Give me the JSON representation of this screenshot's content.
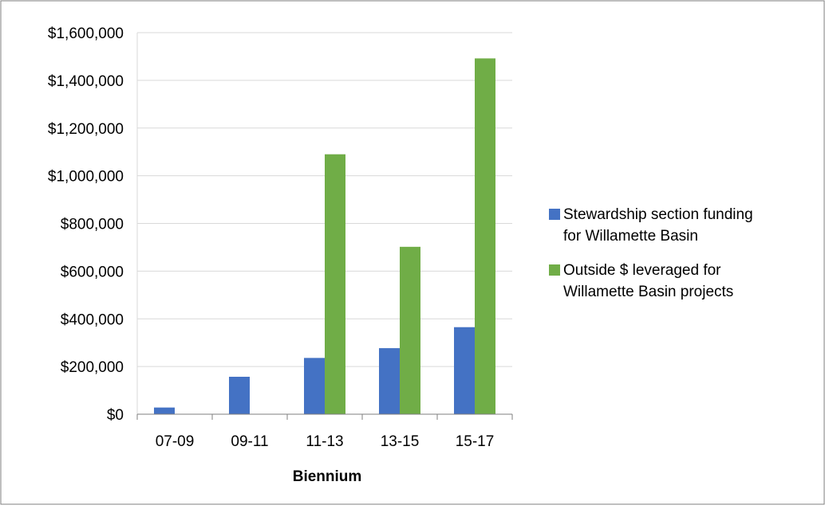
{
  "chart_data": {
    "type": "bar",
    "categories": [
      "07-09",
      "09-11",
      "11-13",
      "13-15",
      "15-17"
    ],
    "series": [
      {
        "name": "Stewardship section funding for Willamette Basin",
        "legend_lines": [
          "Stewardship section funding",
          "for Willamette Basin"
        ],
        "color": "#4472c4",
        "values": [
          28000,
          157000,
          236000,
          277000,
          365000
        ]
      },
      {
        "name": "Outside $ leveraged for Willamette Basin projects",
        "legend_lines": [
          "Outside $ leveraged for",
          "Willamette Basin projects"
        ],
        "color": "#70ad47",
        "values": [
          0,
          0,
          1090000,
          702000,
          1492000
        ]
      }
    ],
    "title": "",
    "xlabel": "Biennium",
    "ylabel": "",
    "ylim": [
      0,
      1600000
    ],
    "yticks": [
      0,
      200000,
      400000,
      600000,
      800000,
      1000000,
      1200000,
      1400000,
      1600000
    ],
    "ytick_labels": [
      "$0",
      "$200,000",
      "$400,000",
      "$600,000",
      "$800,000",
      "$1,000,000",
      "$1,200,000",
      "$1,400,000",
      "$1,600,000"
    ],
    "grid": true,
    "legend_position": "right"
  }
}
